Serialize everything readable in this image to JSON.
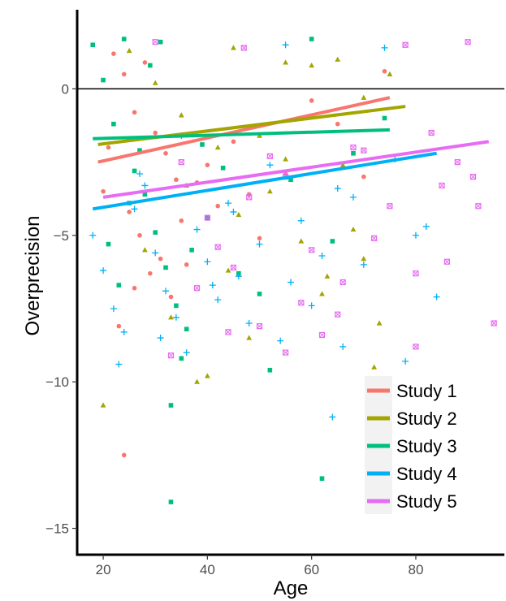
{
  "chart_data": {
    "type": "scatter",
    "title": "",
    "xlabel": "Age",
    "ylabel": "Overprecision",
    "xlim": [
      15,
      97
    ],
    "ylim": [
      -15.9,
      2.7
    ],
    "x_ticks": [
      20,
      40,
      60,
      80
    ],
    "y_ticks": [
      0,
      -5,
      -10,
      -15
    ],
    "x_tick_labels": [
      "20",
      "40",
      "60",
      "80"
    ],
    "y_tick_labels": [
      "0",
      "−5",
      "−10",
      "−15"
    ],
    "reference_line_y": 0,
    "grid": false,
    "legend_position": "bottom-right",
    "series": [
      {
        "name": "Study 1",
        "color": "#F8766D",
        "marker": "circle",
        "fit": {
          "x": [
            19,
            75
          ],
          "y": [
            -2.5,
            -0.3
          ]
        },
        "points": [
          [
            22,
            1.2
          ],
          [
            24,
            0.5
          ],
          [
            26,
            -0.8
          ],
          [
            28,
            0.9
          ],
          [
            30,
            -1.5
          ],
          [
            32,
            -2.2
          ],
          [
            34,
            -3.1
          ],
          [
            25,
            -4.2
          ],
          [
            27,
            -5.0
          ],
          [
            29,
            -6.3
          ],
          [
            31,
            -5.8
          ],
          [
            33,
            -7.1
          ],
          [
            23,
            -8.1
          ],
          [
            21,
            -2.0
          ],
          [
            35,
            -4.5
          ],
          [
            38,
            -3.2
          ],
          [
            40,
            -2.6
          ],
          [
            42,
            -4.0
          ],
          [
            45,
            -1.8
          ],
          [
            48,
            -3.6
          ],
          [
            50,
            -5.1
          ],
          [
            55,
            -2.9
          ],
          [
            60,
            -0.4
          ],
          [
            65,
            -1.2
          ],
          [
            70,
            -3.0
          ],
          [
            74,
            0.6
          ],
          [
            24,
            -12.5
          ],
          [
            26,
            -6.8
          ],
          [
            20,
            -3.5
          ],
          [
            36,
            -6.0
          ]
        ]
      },
      {
        "name": "Study 2",
        "color": "#A3A500",
        "marker": "triangle",
        "fit": {
          "x": [
            19,
            78
          ],
          "y": [
            -1.9,
            -0.6
          ]
        },
        "points": [
          [
            20,
            -10.8
          ],
          [
            25,
            1.3
          ],
          [
            30,
            0.2
          ],
          [
            35,
            -0.9
          ],
          [
            40,
            -9.8
          ],
          [
            45,
            1.4
          ],
          [
            50,
            -1.6
          ],
          [
            55,
            -2.4
          ],
          [
            60,
            0.8
          ],
          [
            65,
            1.0
          ],
          [
            70,
            -0.3
          ],
          [
            75,
            0.5
          ],
          [
            52,
            -3.5
          ],
          [
            58,
            -5.2
          ],
          [
            62,
            -7.0
          ],
          [
            68,
            -4.8
          ],
          [
            72,
            -9.5
          ],
          [
            38,
            -10.0
          ],
          [
            44,
            -6.2
          ],
          [
            48,
            -8.5
          ],
          [
            28,
            -5.5
          ],
          [
            33,
            -7.8
          ],
          [
            36,
            -3.3
          ],
          [
            66,
            -2.6
          ],
          [
            73,
            -8.0
          ],
          [
            55,
            0.9
          ],
          [
            42,
            -2.0
          ],
          [
            63,
            -6.4
          ],
          [
            70,
            -5.8
          ],
          [
            46,
            -4.3
          ]
        ]
      },
      {
        "name": "Study 3",
        "color": "#00BF7D",
        "marker": "square",
        "fit": {
          "x": [
            18,
            75
          ],
          "y": [
            -1.7,
            -1.4
          ]
        },
        "points": [
          [
            18,
            1.5
          ],
          [
            20,
            0.3
          ],
          [
            22,
            -1.2
          ],
          [
            24,
            1.7
          ],
          [
            26,
            -2.8
          ],
          [
            28,
            -3.6
          ],
          [
            30,
            -4.9
          ],
          [
            32,
            -6.1
          ],
          [
            34,
            -7.4
          ],
          [
            36,
            -8.2
          ],
          [
            21,
            -5.3
          ],
          [
            23,
            -6.7
          ],
          [
            25,
            -3.9
          ],
          [
            27,
            -2.1
          ],
          [
            29,
            0.8
          ],
          [
            31,
            1.6
          ],
          [
            33,
            -14.1
          ],
          [
            35,
            -9.2
          ],
          [
            37,
            -5.5
          ],
          [
            40,
            -4.4
          ],
          [
            43,
            -2.7
          ],
          [
            46,
            -6.3
          ],
          [
            50,
            -7.0
          ],
          [
            52,
            -9.6
          ],
          [
            56,
            -3.1
          ],
          [
            60,
            1.7
          ],
          [
            62,
            -13.3
          ],
          [
            64,
            -5.2
          ],
          [
            68,
            -2.2
          ],
          [
            74,
            -1.0
          ],
          [
            33,
            -10.8
          ],
          [
            39,
            -1.9
          ]
        ]
      },
      {
        "name": "Study 4",
        "color": "#00B0F6",
        "marker": "plus",
        "fit": {
          "x": [
            18,
            84
          ],
          "y": [
            -4.1,
            -2.2
          ]
        },
        "points": [
          [
            18,
            -5.0
          ],
          [
            20,
            -6.2
          ],
          [
            22,
            -7.5
          ],
          [
            24,
            -8.3
          ],
          [
            26,
            -4.1
          ],
          [
            28,
            -3.3
          ],
          [
            30,
            -5.6
          ],
          [
            32,
            -6.9
          ],
          [
            34,
            -7.8
          ],
          [
            36,
            -9.0
          ],
          [
            38,
            -4.8
          ],
          [
            40,
            -5.9
          ],
          [
            42,
            -7.2
          ],
          [
            44,
            -3.9
          ],
          [
            46,
            -6.4
          ],
          [
            48,
            -8.0
          ],
          [
            50,
            -5.3
          ],
          [
            52,
            -2.6
          ],
          [
            54,
            -8.6
          ],
          [
            56,
            -6.6
          ],
          [
            58,
            -4.5
          ],
          [
            60,
            -7.4
          ],
          [
            62,
            -5.7
          ],
          [
            64,
            -11.2
          ],
          [
            66,
            -8.8
          ],
          [
            68,
            -3.7
          ],
          [
            70,
            -6.0
          ],
          [
            72,
            -10.8
          ],
          [
            74,
            1.4
          ],
          [
            76,
            -2.4
          ],
          [
            78,
            -9.3
          ],
          [
            80,
            -5.0
          ],
          [
            82,
            -4.7
          ],
          [
            84,
            -7.1
          ],
          [
            23,
            -9.4
          ],
          [
            27,
            -2.9
          ],
          [
            35,
            -1.6
          ],
          [
            45,
            -4.2
          ],
          [
            55,
            1.5
          ],
          [
            65,
            -3.4
          ],
          [
            31,
            -8.5
          ],
          [
            41,
            -6.7
          ]
        ]
      },
      {
        "name": "Study 5",
        "color": "#E76BF3",
        "marker": "square-x",
        "fit": {
          "x": [
            20,
            94
          ],
          "y": [
            -3.7,
            -1.8
          ]
        },
        "points": [
          [
            30,
            1.6
          ],
          [
            35,
            -2.5
          ],
          [
            40,
            -4.4
          ],
          [
            45,
            -6.1
          ],
          [
            50,
            -8.1
          ],
          [
            55,
            -3.0
          ],
          [
            60,
            -5.5
          ],
          [
            65,
            -7.7
          ],
          [
            70,
            -2.1
          ],
          [
            75,
            -4.0
          ],
          [
            80,
            -6.3
          ],
          [
            85,
            -3.3
          ],
          [
            88,
            -2.5
          ],
          [
            90,
            1.6
          ],
          [
            92,
            -4.0
          ],
          [
            95,
            -8.0
          ],
          [
            80,
            -8.8
          ],
          [
            86,
            -5.9
          ],
          [
            78,
            1.5
          ],
          [
            72,
            -5.1
          ],
          [
            66,
            -6.6
          ],
          [
            58,
            -7.3
          ],
          [
            52,
            -2.3
          ],
          [
            48,
            -3.7
          ],
          [
            42,
            -5.4
          ],
          [
            38,
            -6.8
          ],
          [
            47,
            1.4
          ],
          [
            83,
            -1.5
          ],
          [
            91,
            -3.0
          ],
          [
            68,
            -2.0
          ],
          [
            62,
            -8.4
          ],
          [
            55,
            -9.0
          ],
          [
            44,
            -8.3
          ],
          [
            33,
            -9.1
          ]
        ]
      }
    ]
  }
}
